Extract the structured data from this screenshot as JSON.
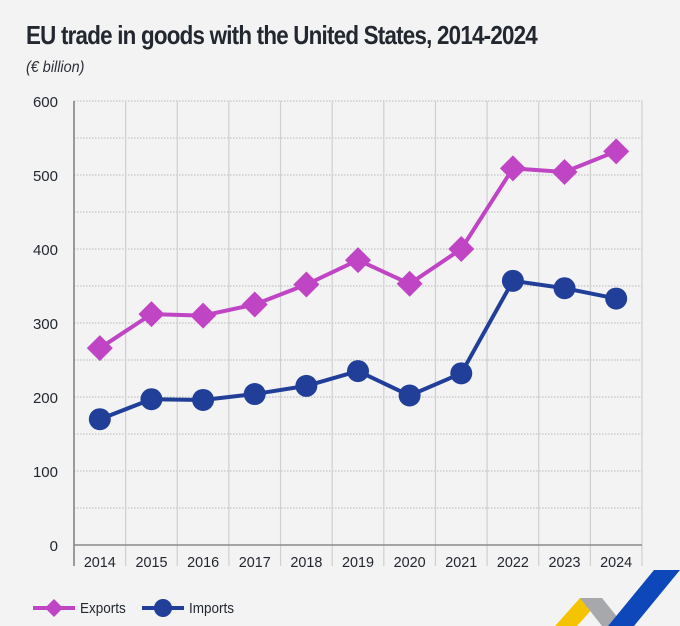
{
  "chart_data": {
    "type": "line",
    "title": "EU trade in goods with the United States, 2014-2024",
    "subtitle": "(€ billion)",
    "xlabel": "",
    "ylabel": "€ billion",
    "categories": [
      "2014",
      "2015",
      "2016",
      "2017",
      "2018",
      "2019",
      "2020",
      "2021",
      "2022",
      "2023",
      "2024"
    ],
    "ylim": [
      0,
      600
    ],
    "yticks": [
      0,
      100,
      200,
      300,
      400,
      500,
      600
    ],
    "grid": true,
    "legend_position": "bottom-left",
    "series": [
      {
        "name": "Exports",
        "marker": "diamond",
        "color": "#c045c4",
        "values": [
          266,
          312,
          310,
          325,
          352,
          385,
          353,
          400,
          509,
          504,
          532
        ]
      },
      {
        "name": "Imports",
        "marker": "circle",
        "color": "#213f99",
        "values": [
          170,
          197,
          196,
          204,
          215,
          235,
          202,
          232,
          357,
          347,
          333
        ]
      }
    ]
  },
  "logo": {
    "name": "eurostat-ribbon-logo",
    "colors": [
      "#f5c400",
      "#a6a8ab",
      "#0e47b9"
    ]
  }
}
